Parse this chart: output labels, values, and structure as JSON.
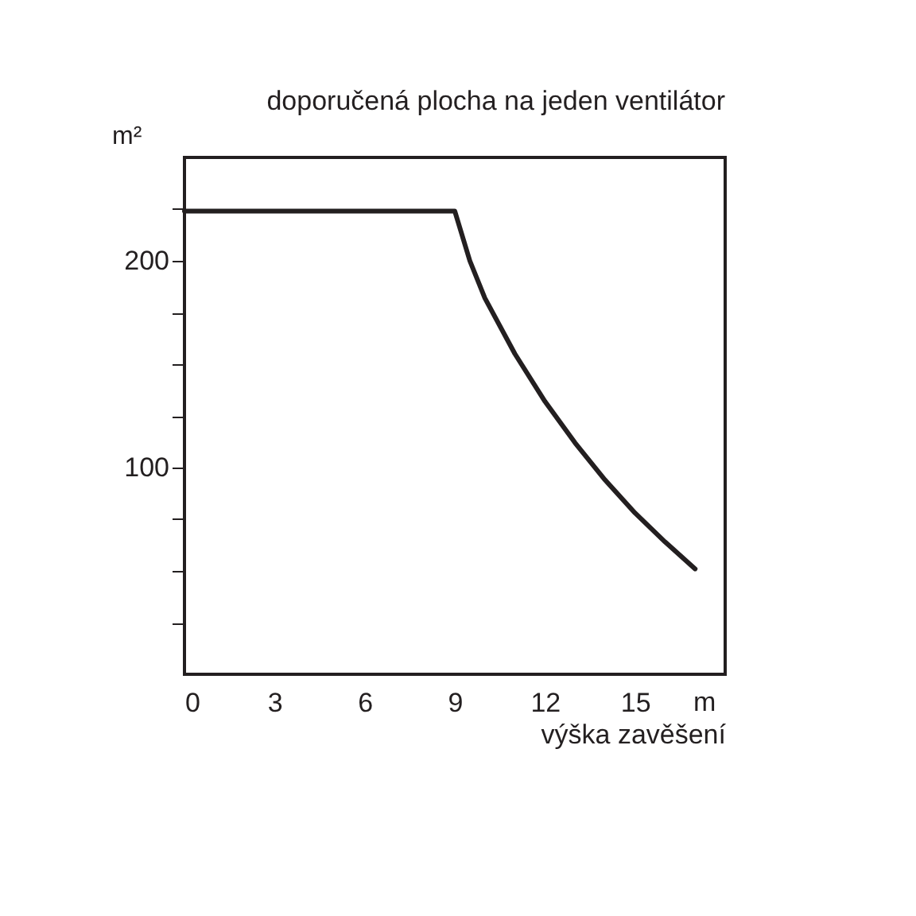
{
  "chart_data": {
    "type": "line",
    "title": "doporučená plocha na jeden ventilátor",
    "xlabel": "výška zavěšení",
    "ylabel": "m²",
    "annotations": [
      "m"
    ],
    "series": [
      {
        "color": "#231f20",
        "x": [
          0,
          9,
          9.5,
          10,
          11,
          12,
          13,
          14,
          15,
          16,
          17
        ],
        "values": [
          224,
          224,
          200,
          182,
          155,
          132,
          112,
          94,
          78,
          64,
          51
        ]
      }
    ],
    "xlim": [
      0,
      18
    ],
    "xticks": [
      0,
      3,
      6,
      9,
      12,
      15
    ],
    "ylim": [
      0,
      250
    ],
    "yticks": [
      {
        "value": 25,
        "label": null
      },
      {
        "value": 50,
        "label": null
      },
      {
        "value": 75,
        "label": null
      },
      100,
      {
        "value": 125,
        "label": null
      },
      {
        "value": 150,
        "label": null
      },
      {
        "value": 175,
        "label": null
      },
      200,
      {
        "value": 225,
        "label": null
      }
    ],
    "grid": false,
    "marker": "none",
    "line_style": "solid"
  }
}
